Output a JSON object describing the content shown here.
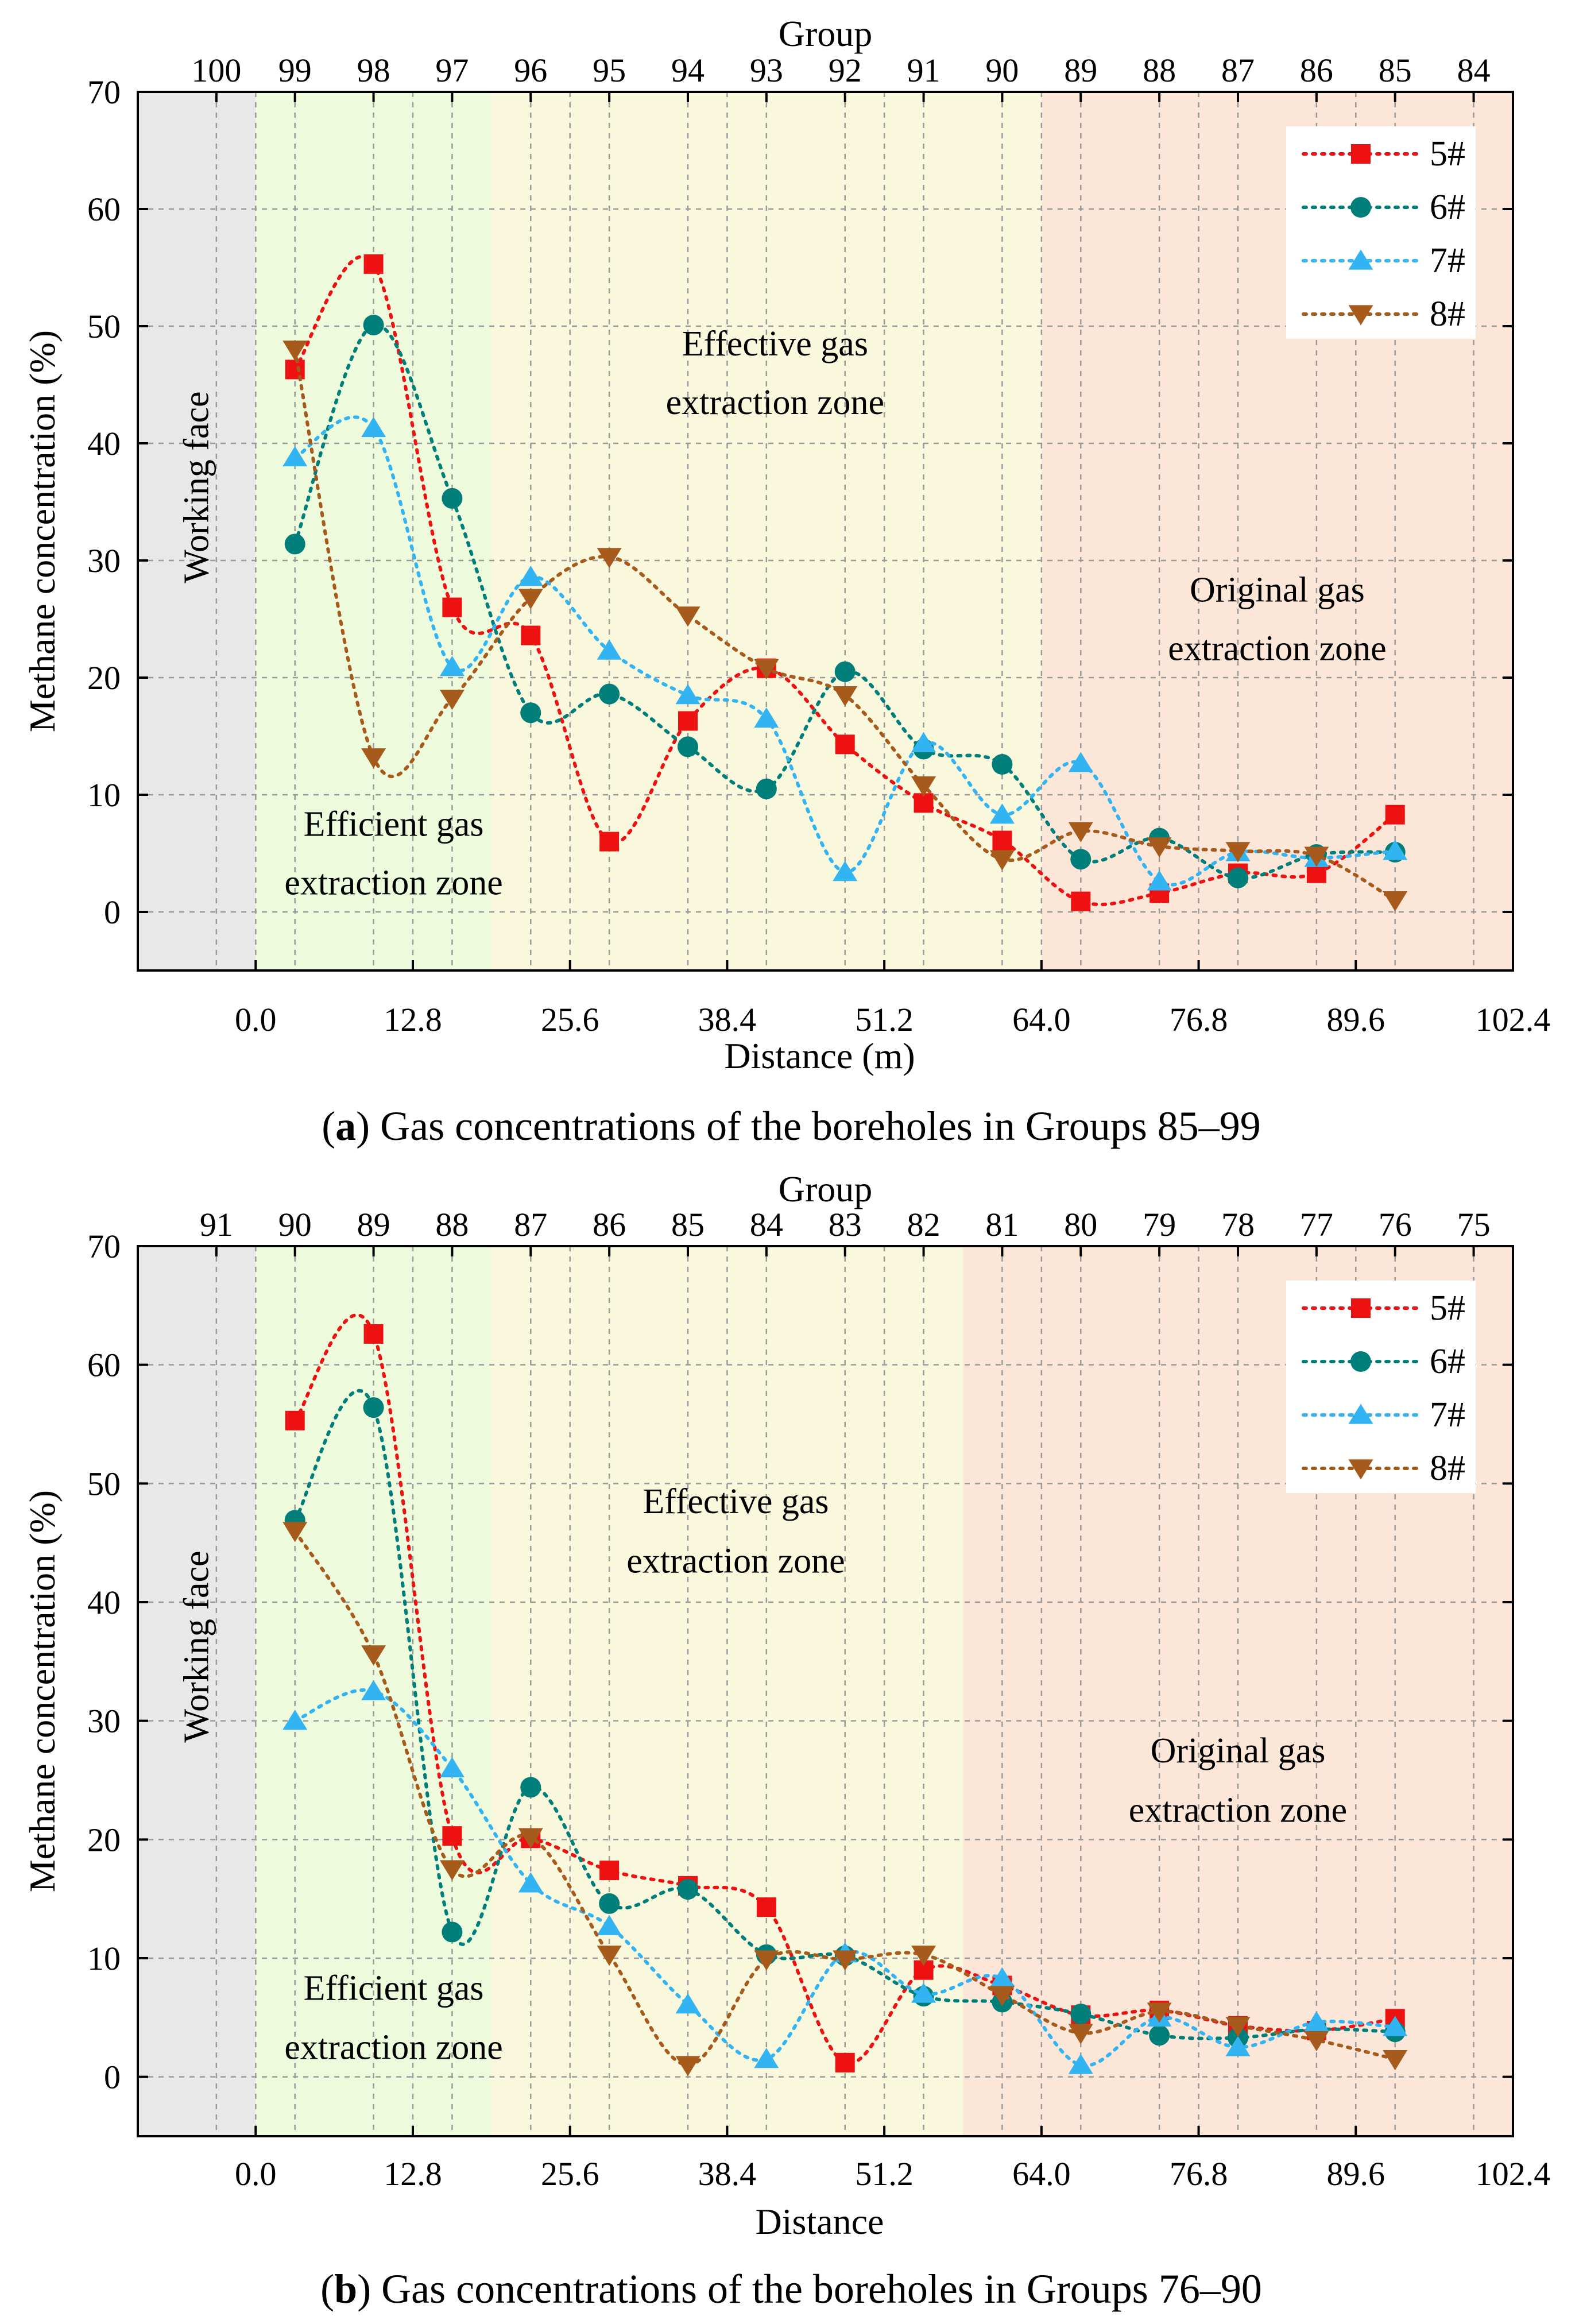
{
  "chart_data": [
    {
      "type": "line",
      "caption_letter": "a",
      "caption_text": ") Gas concentrations of the boreholes in Groups 85–99",
      "xlabel": "Distance (m)",
      "ylabel": "Methane concentration (%)",
      "top_axis_label": "Group",
      "xlim": [
        -9.6,
        102.4
      ],
      "ylim": [
        -5,
        70
      ],
      "x_ticks": [
        "0.0",
        "12.8",
        "25.6",
        "38.4",
        "51.2",
        "64.0",
        "76.8",
        "89.6",
        "102.4"
      ],
      "x_tick_values": [
        0,
        12.8,
        25.6,
        38.4,
        51.2,
        64.0,
        76.8,
        89.6,
        102.4
      ],
      "y_ticks": [
        "0",
        "10",
        "20",
        "30",
        "40",
        "50",
        "60",
        "70"
      ],
      "y_tick_values": [
        0,
        10,
        20,
        30,
        40,
        50,
        60,
        70
      ],
      "top_ticks": [
        "100",
        "99",
        "98",
        "97",
        "96",
        "95",
        "94",
        "93",
        "92",
        "91",
        "90",
        "89",
        "88",
        "87",
        "86",
        "85",
        "84"
      ],
      "top_tick_values": [
        -3.2,
        3.2,
        9.6,
        16.0,
        22.4,
        28.8,
        35.2,
        41.6,
        48.0,
        54.4,
        60.8,
        67.2,
        73.6,
        80.0,
        86.4,
        92.8,
        99.2
      ],
      "zones": [
        {
          "name": "Working face",
          "from": -9.6,
          "to": 0,
          "color": "#e8e8e8"
        },
        {
          "name": "Efficient gas extraction zone",
          "from": 0,
          "to": 19.2,
          "color": "#eefadc"
        },
        {
          "name": "Effective gas extraction zone",
          "from": 19.2,
          "to": 64.0,
          "color": "#faf8dc"
        },
        {
          "name": "Original gas extraction zone",
          "from": 64.0,
          "to": 102.4,
          "color": "#fbe6d8"
        }
      ],
      "zone_labels": {
        "working_face": "Working face",
        "efficient": [
          "Efficient gas",
          "extraction zone"
        ],
        "effective": [
          "Effective gas",
          "extraction zone"
        ],
        "original": [
          "Original gas",
          "extraction zone"
        ]
      },
      "legend_position": "top-right",
      "x": [
        3.2,
        9.6,
        16.0,
        22.4,
        28.8,
        35.2,
        41.6,
        48.0,
        54.4,
        60.8,
        67.2,
        73.6,
        80.0,
        86.4,
        92.8
      ],
      "series": [
        {
          "name": "5#",
          "color": "#ee1111",
          "marker": "square",
          "values": [
            46.3,
            55.3,
            26.0,
            23.6,
            6.0,
            16.3,
            20.8,
            14.3,
            9.3,
            6.1,
            0.9,
            1.6,
            3.3,
            3.3,
            8.3
          ]
        },
        {
          "name": "6#",
          "color": "#007f7a",
          "marker": "circle",
          "values": [
            31.4,
            50.1,
            35.3,
            17.0,
            18.6,
            14.1,
            10.5,
            20.5,
            13.9,
            12.6,
            4.5,
            6.3,
            2.9,
            4.9,
            5.1
          ]
        },
        {
          "name": "7#",
          "color": "#33b4f2",
          "marker": "triangle-up",
          "values": [
            38.8,
            41.3,
            20.9,
            28.6,
            22.3,
            18.5,
            16.5,
            3.4,
            14.4,
            8.3,
            12.7,
            2.6,
            5.1,
            4.6,
            5.2
          ]
        },
        {
          "name": "8#",
          "color": "#a65a1c",
          "marker": "triangle-down",
          "values": [
            48.0,
            13.2,
            18.2,
            26.8,
            30.3,
            25.3,
            20.8,
            18.5,
            10.8,
            4.5,
            6.9,
            5.6,
            5.2,
            4.8,
            1.0
          ]
        }
      ]
    },
    {
      "type": "line",
      "caption_letter": "b",
      "caption_text": ") Gas concentrations of the boreholes in Groups 76–90",
      "xlabel": "Distance",
      "ylabel": "Methane concentration (%)",
      "top_axis_label": "Group",
      "xlim": [
        -9.6,
        102.4
      ],
      "ylim": [
        -5,
        70
      ],
      "x_ticks": [
        "0.0",
        "12.8",
        "25.6",
        "38.4",
        "51.2",
        "64.0",
        "76.8",
        "89.6",
        "102.4"
      ],
      "x_tick_values": [
        0,
        12.8,
        25.6,
        38.4,
        51.2,
        64.0,
        76.8,
        89.6,
        102.4
      ],
      "y_ticks": [
        "0",
        "10",
        "20",
        "30",
        "40",
        "50",
        "60",
        "70"
      ],
      "y_tick_values": [
        0,
        10,
        20,
        30,
        40,
        50,
        60,
        70
      ],
      "top_ticks": [
        "91",
        "90",
        "89",
        "88",
        "87",
        "86",
        "85",
        "84",
        "83",
        "82",
        "81",
        "80",
        "79",
        "78",
        "77",
        "76",
        "75"
      ],
      "top_tick_values": [
        -3.2,
        3.2,
        9.6,
        16.0,
        22.4,
        28.8,
        35.2,
        41.6,
        48.0,
        54.4,
        60.8,
        67.2,
        73.6,
        80.0,
        86.4,
        92.8,
        99.2
      ],
      "zones": [
        {
          "name": "Working face",
          "from": -9.6,
          "to": 0,
          "color": "#e8e8e8"
        },
        {
          "name": "Efficient gas extraction zone",
          "from": 0,
          "to": 19.2,
          "color": "#eefadc"
        },
        {
          "name": "Effective gas extraction zone",
          "from": 19.2,
          "to": 57.6,
          "color": "#faf8dc"
        },
        {
          "name": "Original gas extraction zone",
          "from": 57.6,
          "to": 102.4,
          "color": "#fbe6d8"
        }
      ],
      "zone_labels": {
        "working_face": "Working face",
        "efficient": [
          "Efficient gas",
          "extraction zone"
        ],
        "effective": [
          "Effective gas",
          "extraction zone"
        ],
        "original": [
          "Original gas",
          "extraction zone"
        ]
      },
      "legend_position": "top-right",
      "x": [
        3.2,
        9.6,
        16.0,
        22.4,
        28.8,
        35.2,
        41.6,
        48.0,
        54.4,
        60.8,
        67.2,
        73.6,
        80.0,
        86.4,
        92.8
      ],
      "series": [
        {
          "name": "5#",
          "color": "#ee1111",
          "marker": "square",
          "values": [
            55.3,
            62.6,
            20.3,
            20.1,
            17.4,
            16.1,
            14.3,
            1.2,
            9.0,
            7.7,
            5.2,
            5.6,
            4.3,
            3.9,
            4.9
          ]
        },
        {
          "name": "6#",
          "color": "#007f7a",
          "marker": "circle",
          "values": [
            46.9,
            56.4,
            12.2,
            24.4,
            14.6,
            15.8,
            10.3,
            10.2,
            6.8,
            6.3,
            5.3,
            3.5,
            3.3,
            4.0,
            3.8
          ]
        },
        {
          "name": "7#",
          "color": "#33b4f2",
          "marker": "triangle-up",
          "values": [
            30.0,
            32.5,
            26.0,
            16.3,
            12.7,
            6.1,
            1.5,
            10.4,
            7.0,
            8.3,
            1.0,
            5.0,
            2.5,
            4.6,
            4.2
          ]
        },
        {
          "name": "8#",
          "color": "#a65a1c",
          "marker": "triangle-down",
          "values": [
            46.0,
            35.6,
            17.5,
            20.2,
            10.3,
            1.0,
            9.9,
            9.9,
            10.3,
            6.9,
            3.7,
            5.5,
            4.3,
            3.1,
            1.5
          ]
        }
      ]
    }
  ]
}
